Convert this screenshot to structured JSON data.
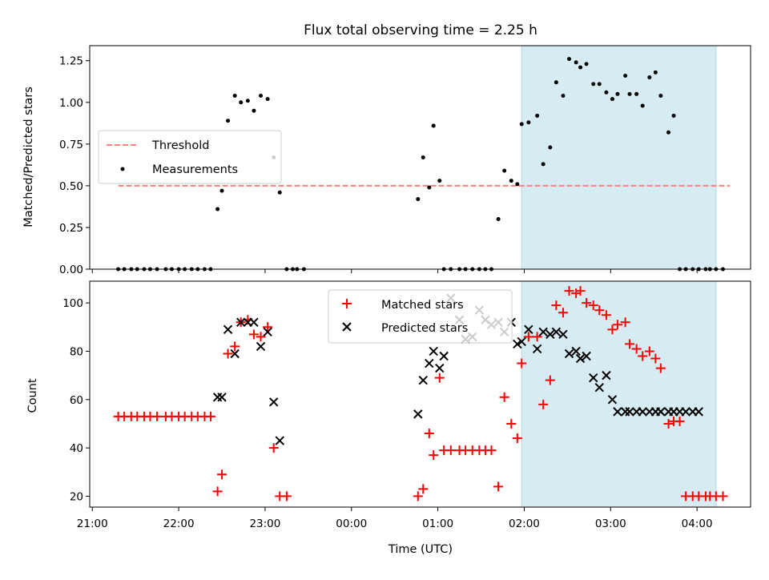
{
  "chart_data": [
    {
      "type": "scatter",
      "title": "Flux total observing time = 2.25 h",
      "ylabel": "Matched/Predicted stars",
      "xlabel": "",
      "xlim": [
        -0.03,
        7.62
      ],
      "ylim": [
        0,
        1.34
      ],
      "yticks": [
        0.0,
        0.25,
        0.5,
        0.75,
        1.0,
        1.25
      ],
      "ytick_labels": [
        "0.00",
        "0.25",
        "0.50",
        "0.75",
        "1.00",
        "1.25"
      ],
      "xticks": [
        0,
        1,
        2,
        3,
        4,
        5,
        6,
        7
      ],
      "shaded_x_range": [
        4.97,
        7.22
      ],
      "shade_color": "#add8e6",
      "threshold": {
        "name": "Threshold",
        "value": 0.5,
        "x_range": [
          0.3,
          7.38
        ],
        "color": "#ff7f7f"
      },
      "legend": {
        "location": "center-left",
        "entries": [
          "Threshold",
          "Measurements"
        ]
      },
      "series": [
        {
          "name": "Measurements",
          "marker": "dot",
          "color": "#000000",
          "x": [
            0.3,
            0.37,
            0.45,
            0.52,
            0.6,
            0.67,
            0.75,
            0.85,
            0.92,
            1.0,
            1.07,
            1.15,
            1.22,
            1.3,
            1.37,
            1.45,
            1.5,
            1.57,
            1.65,
            1.72,
            1.8,
            1.87,
            1.95,
            2.03,
            2.1,
            2.17,
            2.25,
            2.32,
            2.37,
            2.45,
            3.77,
            3.83,
            3.9,
            3.95,
            4.02,
            4.07,
            4.15,
            4.25,
            4.32,
            4.4,
            4.48,
            4.55,
            4.62,
            4.7,
            4.77,
            4.85,
            4.92,
            4.97,
            5.05,
            5.15,
            5.22,
            5.3,
            5.37,
            5.45,
            5.52,
            5.6,
            5.65,
            5.72,
            5.8,
            5.87,
            5.95,
            6.02,
            6.08,
            6.17,
            6.22,
            6.3,
            6.37,
            6.45,
            6.52,
            6.58,
            6.67,
            6.73,
            6.8,
            6.87,
            6.95,
            7.02,
            7.1,
            7.15,
            7.22,
            7.3
          ],
          "y": [
            0,
            0,
            0,
            0,
            0,
            0,
            0,
            0,
            0,
            0,
            0,
            0,
            0,
            0,
            0,
            0.36,
            0.47,
            0.89,
            1.04,
            1.0,
            1.01,
            0.95,
            1.04,
            1.02,
            0.67,
            0.46,
            0,
            0,
            0,
            0,
            0.42,
            0.67,
            0.49,
            0.86,
            0.53,
            0,
            0,
            0,
            0,
            0,
            0,
            0,
            0,
            0.3,
            0.59,
            0.53,
            0.51,
            0.87,
            0.88,
            0.92,
            0.63,
            0.73,
            1.12,
            1.04,
            1.26,
            1.24,
            1.21,
            1.23,
            1.11,
            1.11,
            1.06,
            1.02,
            1.05,
            1.16,
            1.05,
            1.05,
            0.98,
            1.15,
            1.18,
            1.04,
            0.82,
            0.92,
            0,
            0,
            0,
            0,
            0,
            0,
            0,
            0
          ]
        }
      ]
    },
    {
      "type": "scatter",
      "title": "",
      "ylabel": "Count",
      "xlabel": "Time (UTC)",
      "xlim": [
        -0.03,
        7.62
      ],
      "ylim": [
        15.5,
        109
      ],
      "yticks": [
        20,
        40,
        60,
        80,
        100
      ],
      "ytick_labels": [
        "20",
        "40",
        "60",
        "80",
        "100"
      ],
      "xticks": [
        0,
        1,
        2,
        3,
        4,
        5,
        6,
        7
      ],
      "xtick_labels": [
        "21:00",
        "22:00",
        "23:00",
        "00:00",
        "01:00",
        "02:00",
        "03:00",
        "04:00"
      ],
      "shaded_x_range": [
        4.97,
        7.22
      ],
      "shade_color": "#add8e6",
      "legend": {
        "location": "upper-center",
        "entries": [
          "Matched stars",
          "Predicted stars"
        ]
      },
      "series": [
        {
          "name": "Matched stars",
          "marker": "plus",
          "color": "#ff0000",
          "x": [
            0.3,
            0.37,
            0.45,
            0.52,
            0.6,
            0.67,
            0.75,
            0.85,
            0.92,
            1.0,
            1.07,
            1.15,
            1.22,
            1.3,
            1.37,
            1.45,
            1.5,
            1.57,
            1.65,
            1.72,
            1.8,
            1.87,
            1.95,
            2.03,
            2.1,
            2.17,
            2.25,
            3.77,
            3.83,
            3.9,
            3.95,
            4.02,
            4.07,
            4.15,
            4.25,
            4.32,
            4.4,
            4.48,
            4.55,
            4.62,
            4.7,
            4.77,
            4.85,
            4.92,
            4.97,
            5.05,
            5.15,
            5.22,
            5.3,
            5.37,
            5.45,
            5.52,
            5.6,
            5.65,
            5.72,
            5.8,
            5.87,
            5.95,
            6.02,
            6.08,
            6.17,
            6.22,
            6.3,
            6.37,
            6.45,
            6.52,
            6.58,
            6.67,
            6.73,
            6.8,
            6.87,
            6.95,
            7.02,
            7.1,
            7.15,
            7.22,
            7.3
          ],
          "y": [
            53,
            53,
            53,
            53,
            53,
            53,
            53,
            53,
            53,
            53,
            53,
            53,
            53,
            53,
            53,
            22,
            29,
            79,
            82,
            92,
            93,
            87,
            86,
            90,
            40,
            20,
            20,
            20,
            23,
            46,
            37,
            69,
            39,
            39,
            39,
            39,
            39,
            39,
            39,
            39,
            24,
            61,
            50,
            44,
            75,
            86,
            86,
            58,
            68,
            99,
            96,
            105,
            104,
            105,
            100,
            99,
            97,
            95,
            89,
            91,
            92,
            83,
            81,
            78,
            80,
            77,
            73,
            50,
            51,
            51,
            20,
            20,
            20,
            20,
            20,
            20,
            20
          ]
        },
        {
          "name": "Predicted stars",
          "marker": "x",
          "color": "#000000",
          "x": [
            1.45,
            1.5,
            1.57,
            1.65,
            1.72,
            1.8,
            1.87,
            1.95,
            2.03,
            2.1,
            2.17,
            3.77,
            3.83,
            3.9,
            3.95,
            4.02,
            4.07,
            4.15,
            4.25,
            4.32,
            4.4,
            4.48,
            4.55,
            4.62,
            4.7,
            4.77,
            4.85,
            4.92,
            4.97,
            5.05,
            5.15,
            5.22,
            5.3,
            5.37,
            5.45,
            5.52,
            5.6,
            5.65,
            5.72,
            5.8,
            5.87,
            5.95,
            6.02,
            6.08,
            6.17,
            6.22,
            6.3,
            6.37,
            6.45,
            6.52,
            6.58,
            6.67,
            6.73,
            6.8,
            6.87,
            6.95,
            7.02
          ],
          "y": [
            61,
            61,
            89,
            79,
            92,
            92,
            92,
            82,
            88,
            59,
            43,
            54,
            68,
            75,
            80,
            73,
            78,
            102,
            93,
            85,
            86,
            97,
            93,
            91,
            92,
            88,
            92,
            83,
            84,
            89,
            81,
            88,
            87,
            88,
            87,
            79,
            80,
            77,
            78,
            69,
            65,
            70,
            60,
            55,
            55,
            55,
            55,
            55,
            55,
            55,
            55,
            55,
            55,
            55,
            55,
            55,
            55
          ]
        }
      ]
    }
  ]
}
